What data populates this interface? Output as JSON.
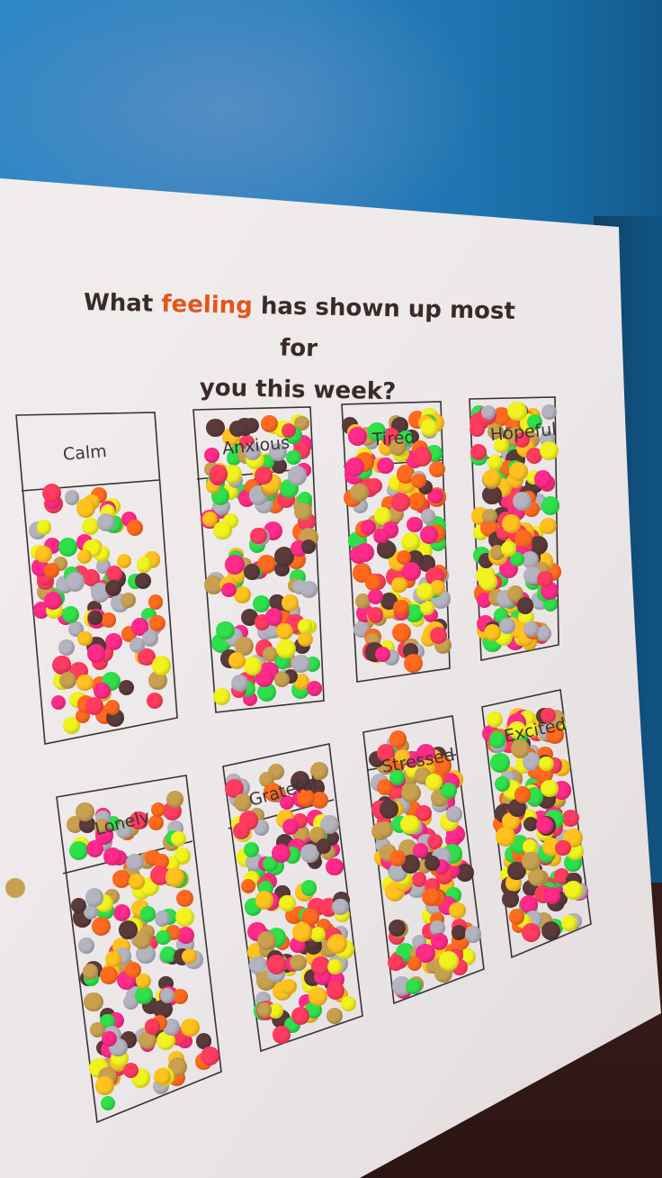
{
  "poster": {
    "title_part1": "What",
    "title_accent": "feeling",
    "title_part2": "has shown up most for",
    "title_line2": "you this week?"
  },
  "feelings": [
    {
      "label": "Calm",
      "sticker_density": "medium"
    },
    {
      "label": "Anxious",
      "sticker_density": "high"
    },
    {
      "label": "Tired",
      "sticker_density": "high"
    },
    {
      "label": "Hopeful",
      "sticker_density": "high"
    },
    {
      "label": "Lonely",
      "sticker_density": "high"
    },
    {
      "label": "Grateful",
      "sticker_density": "high"
    },
    {
      "label": "Stressed",
      "sticker_density": "high"
    },
    {
      "label": "Excited",
      "sticker_density": "high"
    }
  ],
  "sticker_colors": [
    "#ff2a8a",
    "#2ee04a",
    "#f2f21e",
    "#ff6a1e",
    "#ffc21e",
    "#c8a050",
    "#b4b4c0",
    "#5a3a3a",
    "#ff3c60"
  ],
  "colors": {
    "wall": "#2a80be",
    "paper": "#efebec",
    "title_text": "#3b2a2a",
    "title_accent": "#e2561c",
    "box_border": "#3a3333"
  }
}
